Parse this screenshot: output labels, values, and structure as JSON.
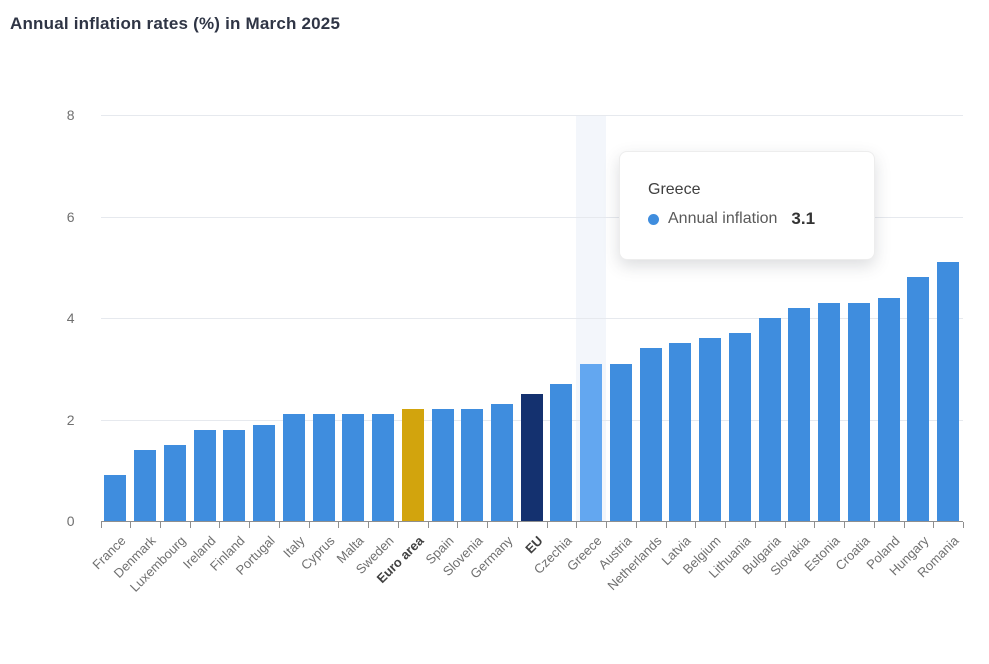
{
  "page": {
    "title": "Annual inflation rates (%) in March 2025"
  },
  "colors": {
    "bar_default": "#3f8dde",
    "bar_hover": "#63a7f0",
    "bar_euro_area": "#d2a40d",
    "bar_eu": "#14316f",
    "gridline": "#e6e9ee",
    "axis_line": "#8f8f8f",
    "hover_band": "#f3f6fb",
    "axis_text": "#707070",
    "axis_text_bold": "#404040",
    "title_text": "#2f3545"
  },
  "chart_data": {
    "type": "bar",
    "title": "Annual inflation rates (%) in March 2025",
    "series_name": "Annual inflation",
    "categories": [
      "France",
      "Denmark",
      "Luxembourg",
      "Ireland",
      "Finland",
      "Portugal",
      "Italy",
      "Cyprus",
      "Malta",
      "Sweden",
      "Euro area",
      "Spain",
      "Slovenia",
      "Germany",
      "EU",
      "Czechia",
      "Greece",
      "Austria",
      "Netherlands",
      "Latvia",
      "Belgium",
      "Lithuania",
      "Bulgaria",
      "Slovakia",
      "Estonia",
      "Croatia",
      "Poland",
      "Hungary",
      "Romania"
    ],
    "values": [
      0.9,
      1.4,
      1.5,
      1.8,
      1.8,
      1.9,
      2.1,
      2.1,
      2.1,
      2.1,
      2.2,
      2.2,
      2.2,
      2.3,
      2.5,
      2.7,
      3.1,
      3.1,
      3.4,
      3.5,
      3.6,
      3.7,
      4.0,
      4.2,
      4.3,
      4.3,
      4.4,
      4.8,
      5.1
    ],
    "xlabel": "",
    "ylabel": "",
    "ylim": [
      0,
      8
    ],
    "yticks": [
      0,
      2,
      4,
      6,
      8
    ],
    "grid": true,
    "legend_position": "none",
    "bold_categories": [
      "Euro area",
      "EU"
    ],
    "special_colors": {
      "Euro area": "#d2a40d",
      "EU": "#14316f"
    },
    "highlighted_category": "Greece"
  },
  "tooltip": {
    "title": "Greece",
    "series_label": "Annual inflation",
    "value": "3.1"
  }
}
